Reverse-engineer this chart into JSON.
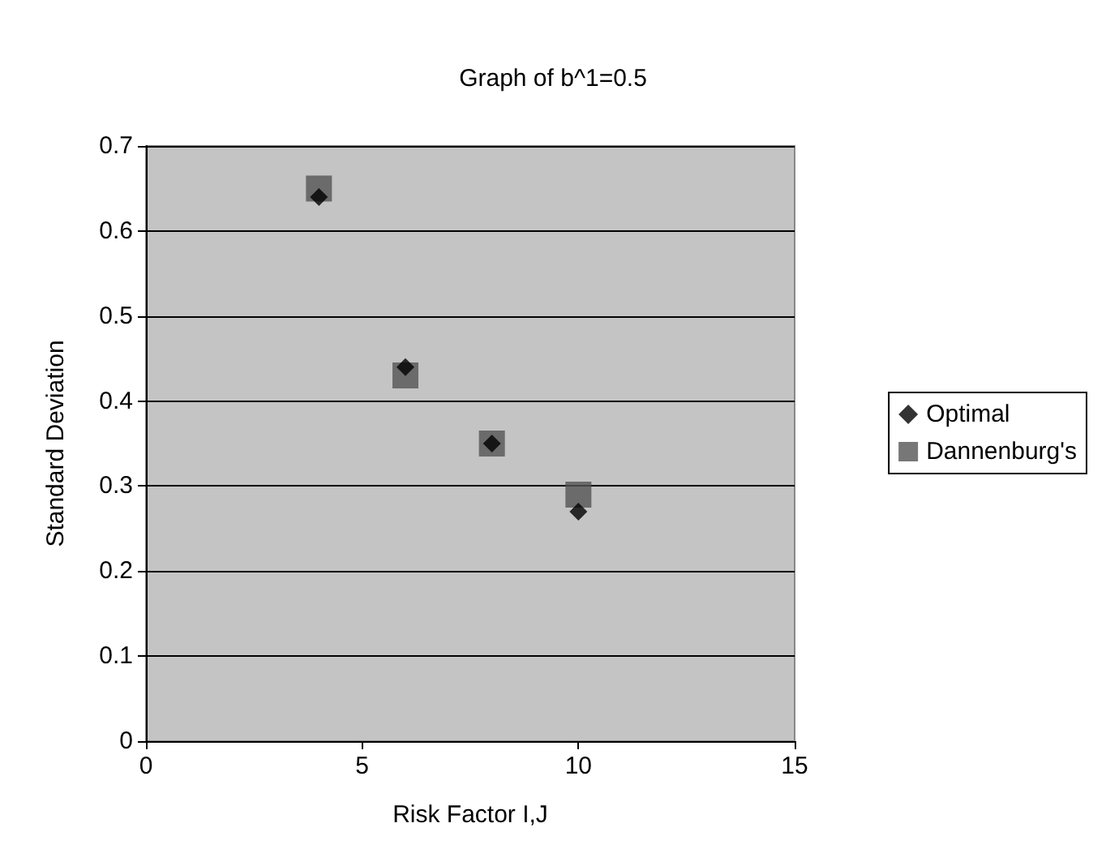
{
  "chart_data": {
    "type": "scatter",
    "title": "Graph of b^1=0.5",
    "xlabel": "Risk Factor I,J",
    "ylabel": "Standard Deviation",
    "x": [
      4,
      6,
      8,
      10
    ],
    "series": [
      {
        "name": "Optimal",
        "color": "#000000",
        "marker": "diamond",
        "values": [
          0.64,
          0.44,
          0.35,
          0.27
        ]
      },
      {
        "name": "Dannenburg's",
        "color": "#555555",
        "marker": "square",
        "values": [
          0.65,
          0.43,
          0.35,
          0.29
        ]
      }
    ],
    "xlim": [
      0,
      15
    ],
    "xticks": [
      0,
      5,
      10,
      15
    ],
    "ylim": [
      0,
      0.7
    ],
    "yticks": [
      0,
      0.1,
      0.2,
      0.3,
      0.4,
      0.5,
      0.6,
      0.7
    ],
    "grid": "y",
    "legend": "right"
  }
}
